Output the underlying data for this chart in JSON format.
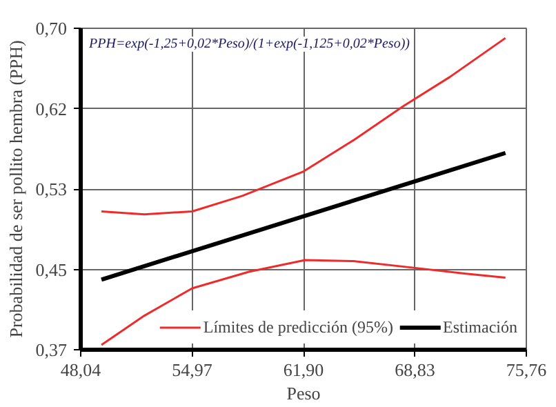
{
  "chart_data": {
    "type": "line",
    "xlabel": "Peso",
    "ylabel": "Probabilidad de ser pollito hembra (PPH)",
    "annotations": [
      "PPH=exp(-1,25+0,02*Peso)/(1+exp(-1,125+0,02*Peso))"
    ],
    "xlim": [
      48.04,
      75.76
    ],
    "ylim": [
      0.37,
      0.7
    ],
    "xticks": [
      {
        "value": 48.04,
        "label": "48,04"
      },
      {
        "value": 54.97,
        "label": "54,97"
      },
      {
        "value": 61.9,
        "label": "61,90"
      },
      {
        "value": 68.83,
        "label": "68,83"
      },
      {
        "value": 75.76,
        "label": "75,76"
      }
    ],
    "yticks": [
      {
        "value": 0.37,
        "label": "0,37"
      },
      {
        "value": 0.4525,
        "label": "0,45"
      },
      {
        "value": 0.535,
        "label": "0,53"
      },
      {
        "value": 0.6175,
        "label": "0,62"
      },
      {
        "value": 0.7,
        "label": "0,70"
      }
    ],
    "grid": true,
    "legend": "bottom right",
    "marker": "none",
    "line_style": "solid",
    "series": [
      {
        "name": "Límites de predicción (95%)",
        "color": "#ee2b2b",
        "x": [
          49.33,
          52.0,
          54.97,
          58.1,
          61.9,
          65.0,
          68.1,
          71.0,
          74.46
        ],
        "values": [
          0.512,
          0.509,
          0.512,
          0.528,
          0.553,
          0.585,
          0.62,
          0.65,
          0.69
        ]
      },
      {
        "color": "#ee2b2b",
        "x": [
          49.33,
          52.0,
          54.97,
          58.5,
          62.0,
          65.0,
          68.83,
          72.0,
          74.46
        ],
        "values": [
          0.375,
          0.405,
          0.433,
          0.45,
          0.462,
          0.461,
          0.454,
          0.448,
          0.444
        ]
      },
      {
        "name": "Estimación",
        "color": "#000000",
        "x": [
          49.33,
          74.46
        ],
        "values": [
          0.442,
          0.572
        ]
      }
    ]
  }
}
